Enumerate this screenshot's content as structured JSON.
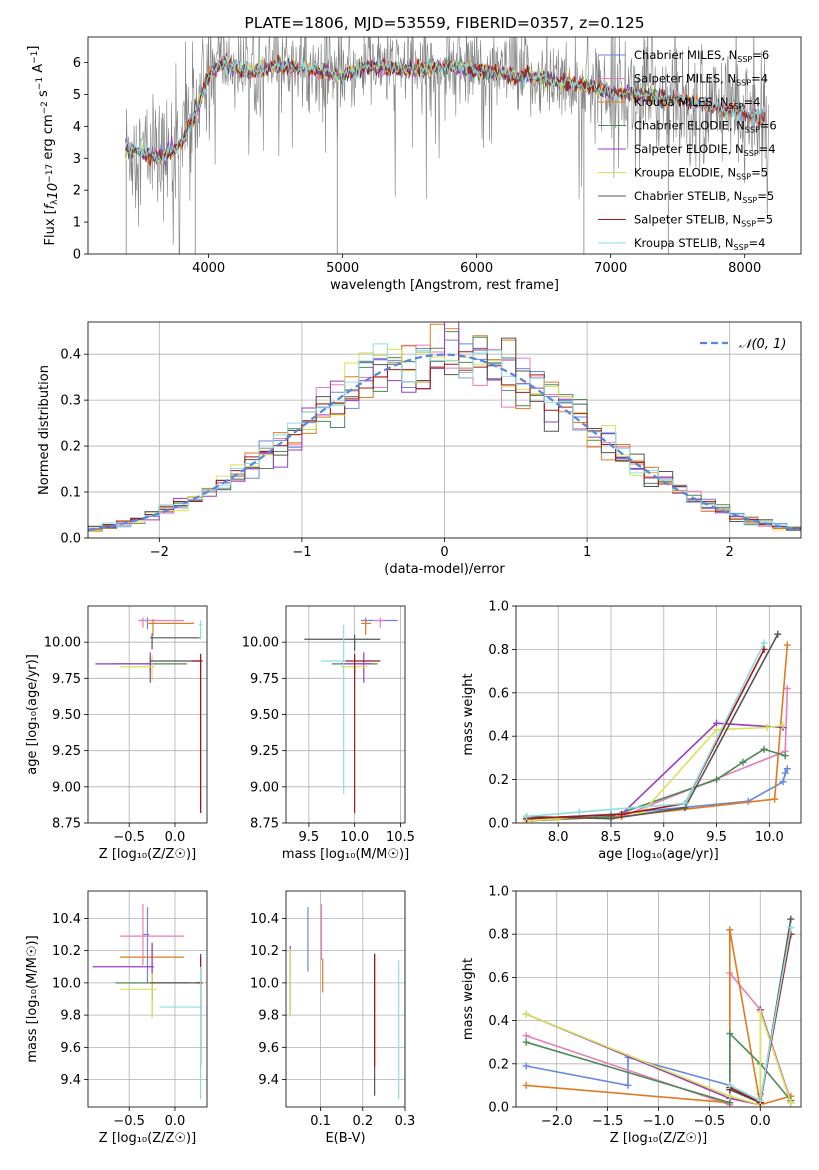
{
  "colors": {
    "miles_chabrier": "#6688dd",
    "miles_salpeter": "#e87dbb",
    "miles_kroupa": "#e07b20",
    "elodie_chabrier": "#4e8a57",
    "elodie_salpeter": "#9a3bc2",
    "elodie_kroupa": "#d9e35a",
    "stelib_chabrier": "#555555",
    "stelib_salpeter": "#a01818",
    "stelib_kroupa": "#8ddde0",
    "spectrum": "#808080",
    "normal": "#5588dd"
  },
  "chart_data": [
    {
      "id": "spectrum",
      "type": "line",
      "title": "PLATE=1806, MJD=53559, FIBERID=0357, z=0.125",
      "xlabel": "wavelength [Angstrom, rest frame]",
      "ylabel": "Flux [f_λ10^-17 erg cm^-2 s^-1 A^-1]",
      "xlim": [
        3100,
        8420
      ],
      "ylim": [
        0,
        6.8
      ],
      "xticks": [
        4000,
        5000,
        6000,
        7000,
        8000
      ],
      "yticks": [
        0,
        1,
        2,
        3,
        4,
        5,
        6
      ],
      "legend": "top-right",
      "legend_entries": [
        {
          "name": "Chabrier MILES, N",
          "sub": "SSP",
          "tail": "=6",
          "color": "miles_chabrier"
        },
        {
          "name": "Salpeter MILES, N",
          "sub": "SSP",
          "tail": "=4",
          "color": "miles_salpeter"
        },
        {
          "name": "Kroupa MILES, N",
          "sub": "SSP",
          "tail": "=4",
          "color": "miles_kroupa"
        },
        {
          "name": "Chabrier ELODIE, N",
          "sub": "SSP",
          "tail": "=6",
          "color": "elodie_chabrier"
        },
        {
          "name": "Salpeter ELODIE, N",
          "sub": "SSP",
          "tail": "=4",
          "color": "elodie_salpeter"
        },
        {
          "name": "Kroupa ELODIE, N",
          "sub": "SSP",
          "tail": "=5",
          "color": "elodie_kroupa"
        },
        {
          "name": "Chabrier STELIB, N",
          "sub": "SSP",
          "tail": "=5",
          "color": "stelib_chabrier"
        },
        {
          "name": "Salpeter STELIB, N",
          "sub": "SSP",
          "tail": "=5",
          "color": "stelib_salpeter"
        },
        {
          "name": "Kroupa STELIB, N",
          "sub": "SSP",
          "tail": "=4",
          "color": "stelib_kroupa"
        }
      ],
      "continuum": {
        "x": [
          3380,
          3500,
          3650,
          3800,
          3900,
          4000,
          4100,
          4300,
          4500,
          4700,
          5000,
          5200,
          5500,
          5800,
          6100,
          6400,
          6600,
          6800,
          7000,
          7200,
          7500,
          7800,
          8000,
          8150
        ],
        "y": [
          3.3,
          3.2,
          3.0,
          3.5,
          4.4,
          5.6,
          6.0,
          5.7,
          5.9,
          5.8,
          5.6,
          5.9,
          5.75,
          5.9,
          5.7,
          5.55,
          5.4,
          5.3,
          5.05,
          5.0,
          4.85,
          4.55,
          4.4,
          4.2
        ]
      }
    },
    {
      "id": "residuals",
      "type": "step",
      "xlabel": "(data-model)/error",
      "ylabel": "Normed distribution",
      "xlim": [
        -2.5,
        2.5
      ],
      "ylim": [
        0,
        0.47
      ],
      "xticks": [
        -2,
        -1,
        0,
        1,
        2
      ],
      "yticks": [
        0.0,
        0.1,
        0.2,
        0.3,
        0.4
      ],
      "legend": "top-right",
      "normal_label": "𝒩(0, 1)",
      "bin_width": 0.1
    },
    {
      "id": "age_Z",
      "type": "errorbar",
      "xlabel": "Z [log₁₀(Z/Z☉)]",
      "ylabel": "age  [log₁₀(age/yr)]",
      "xlim": [
        -0.95,
        0.35
      ],
      "ylim": [
        8.75,
        10.25
      ],
      "xticks": [
        -0.5,
        0.0
      ],
      "yticks": [
        8.75,
        9.0,
        9.25,
        9.5,
        9.75,
        10.0
      ],
      "points": [
        {
          "c": "miles_chabrier",
          "x": -0.3,
          "xerr": [
            0.09,
            0.02
          ],
          "y": 10.15,
          "yerr": [
            0.06,
            0.02
          ]
        },
        {
          "c": "miles_salpeter",
          "x": -0.35,
          "xerr": [
            0.05,
            0.45
          ],
          "y": 10.15,
          "yerr": [
            0.05,
            0.02
          ]
        },
        {
          "c": "miles_kroupa",
          "x": -0.24,
          "xerr": [
            0.05,
            0.45
          ],
          "y": 10.13,
          "yerr": [
            0.08,
            0.03
          ]
        },
        {
          "c": "elodie_chabrier",
          "x": -0.27,
          "xerr": [
            0.42,
            0.4
          ],
          "y": 9.85,
          "yerr": [
            0.06,
            0.05
          ]
        },
        {
          "c": "elodie_salpeter",
          "x": -0.27,
          "xerr": [
            0.6,
            0.03
          ],
          "y": 9.85,
          "yerr": [
            0.13,
            0.08
          ]
        },
        {
          "c": "elodie_kroupa",
          "x": -0.25,
          "xerr": [
            0.35,
            0.03
          ],
          "y": 9.83,
          "yerr": [
            0.1,
            0.08
          ]
        },
        {
          "c": "stelib_chabrier",
          "x": 0.28,
          "xerr": [
            0.55,
            0.02
          ],
          "y": 9.87,
          "yerr": [
            1.05,
            0.03
          ]
        },
        {
          "c": "stelib_salpeter",
          "x": 0.28,
          "xerr": [
            0.1,
            0.02
          ],
          "y": 9.87,
          "yerr": [
            1.05,
            0.05
          ]
        },
        {
          "c": "stelib_kroupa",
          "x": 0.28,
          "xerr": [
            0.02,
            0.02
          ],
          "y": 10.12,
          "yerr": [
            0.1,
            0.03
          ]
        },
        {
          "c": "stelib_chabrier",
          "x": -0.25,
          "xerr": [
            0.02,
            0.52
          ],
          "y": 10.03,
          "yerr": [
            0.08,
            0.03
          ]
        }
      ]
    },
    {
      "id": "age_mass",
      "type": "errorbar",
      "xlabel": "mass [log₁₀(M/M☉)]",
      "ylabel": "",
      "xlim": [
        9.25,
        10.55
      ],
      "ylim": [
        8.75,
        10.25
      ],
      "xticks": [
        9.5,
        10.0,
        10.5
      ],
      "yticks": [
        8.75,
        9.0,
        9.25,
        9.5,
        9.75,
        10.0
      ],
      "points": [
        {
          "c": "miles_chabrier",
          "x": 10.12,
          "xerr": [
            0.05,
            0.35
          ],
          "y": 10.15,
          "yerr": [
            0.05,
            0.02
          ]
        },
        {
          "c": "miles_salpeter",
          "x": 10.28,
          "xerr": [
            0.08,
            0.05
          ],
          "y": 10.15,
          "yerr": [
            0.05,
            0.02
          ]
        },
        {
          "c": "miles_kroupa",
          "x": 10.12,
          "xerr": [
            0.05,
            0.06
          ],
          "y": 10.13,
          "yerr": [
            0.08,
            0.03
          ]
        },
        {
          "c": "elodie_chabrier",
          "x": 10.0,
          "xerr": [
            0.25,
            0.25
          ],
          "y": 9.85,
          "yerr": [
            0.06,
            0.05
          ]
        },
        {
          "c": "elodie_salpeter",
          "x": 10.1,
          "xerr": [
            0.25,
            0.08
          ],
          "y": 9.85,
          "yerr": [
            0.13,
            0.08
          ]
        },
        {
          "c": "elodie_kroupa",
          "x": 10.0,
          "xerr": [
            0.15,
            0.15
          ],
          "y": 9.83,
          "yerr": [
            0.05,
            0.05
          ]
        },
        {
          "c": "stelib_chabrier",
          "x": 10.0,
          "xerr": [
            0.55,
            0.28
          ],
          "y": 10.02,
          "yerr": [
            0.08,
            0.03
          ]
        },
        {
          "c": "stelib_salpeter",
          "x": 10.0,
          "xerr": [
            0.1,
            0.28
          ],
          "y": 9.87,
          "yerr": [
            1.05,
            0.05
          ]
        },
        {
          "c": "stelib_kroupa",
          "x": 9.88,
          "xerr": [
            0.25,
            0.02
          ],
          "y": 9.87,
          "yerr": [
            0.92,
            0.25
          ]
        }
      ]
    },
    {
      "id": "mw_age",
      "type": "line",
      "xlabel": "age  [log₁₀(age/yr)]",
      "ylabel": "mass weight",
      "xlim": [
        7.6,
        10.3
      ],
      "ylim": [
        0,
        1.0
      ],
      "xticks": [
        8.0,
        8.5,
        9.0,
        9.5,
        10.0
      ],
      "yticks": [
        0.0,
        0.2,
        0.4,
        0.6,
        0.8,
        1.0
      ],
      "series": [
        {
          "c": "miles_chabrier",
          "x": [
            7.75,
            8.5,
            9.8,
            10.13,
            10.15,
            10.17
          ],
          "y": [
            0.02,
            0.04,
            0.1,
            0.19,
            0.23,
            0.25
          ]
        },
        {
          "c": "miles_salpeter",
          "x": [
            7.7,
            8.6,
            10.15,
            10.17
          ],
          "y": [
            0.01,
            0.03,
            0.33,
            0.62
          ]
        },
        {
          "c": "miles_kroupa",
          "x": [
            7.7,
            8.6,
            10.05,
            10.17
          ],
          "y": [
            0.01,
            0.03,
            0.11,
            0.82
          ]
        },
        {
          "c": "elodie_chabrier",
          "x": [
            7.7,
            8.5,
            9.5,
            9.75,
            9.95,
            10.15
          ],
          "y": [
            0.01,
            0.03,
            0.2,
            0.28,
            0.34,
            0.31
          ]
        },
        {
          "c": "elodie_salpeter",
          "x": [
            7.7,
            8.6,
            9.5,
            10.13
          ],
          "y": [
            0.02,
            0.04,
            0.46,
            0.44
          ]
        },
        {
          "c": "elodie_kroupa",
          "x": [
            7.7,
            8.0,
            8.8,
            9.5,
            9.98,
            10.13
          ],
          "y": [
            0.01,
            0.02,
            0.05,
            0.43,
            0.44,
            0.45
          ]
        },
        {
          "c": "stelib_chabrier",
          "x": [
            7.7,
            8.5,
            9.2,
            10.08
          ],
          "y": [
            0.03,
            0.02,
            0.07,
            0.87
          ]
        },
        {
          "c": "stelib_salpeter",
          "x": [
            7.7,
            8.6,
            9.2,
            9.95
          ],
          "y": [
            0.02,
            0.04,
            0.09,
            0.8
          ]
        },
        {
          "c": "stelib_kroupa",
          "x": [
            7.7,
            8.2,
            9.2,
            9.95
          ],
          "y": [
            0.03,
            0.05,
            0.09,
            0.83
          ]
        }
      ]
    },
    {
      "id": "mass_Z",
      "type": "errorbar",
      "xlabel": "Z [log₁₀(Z/Z☉)]",
      "ylabel": "mass [log₁₀(M/M☉)]",
      "xlim": [
        -0.95,
        0.35
      ],
      "ylim": [
        9.23,
        10.57
      ],
      "xticks": [
        -0.5,
        0.0
      ],
      "yticks": [
        9.4,
        9.6,
        9.8,
        10.0,
        10.2,
        10.4
      ],
      "points": [
        {
          "c": "miles_chabrier",
          "x": -0.3,
          "xerr": [
            0.05,
            0.02
          ],
          "y": 10.3,
          "yerr": [
            0.3,
            0.17
          ]
        },
        {
          "c": "miles_salpeter",
          "x": -0.35,
          "xerr": [
            0.25,
            0.45
          ],
          "y": 10.29,
          "yerr": [
            0.18,
            0.2
          ]
        },
        {
          "c": "miles_kroupa",
          "x": -0.25,
          "xerr": [
            0.35,
            0.35
          ],
          "y": 10.16,
          "yerr": [
            0.25,
            0.08
          ]
        },
        {
          "c": "elodie_chabrier",
          "x": -0.25,
          "xerr": [
            0.4,
            0.4
          ],
          "y": 10.0,
          "yerr": [
            0.2,
            0.07
          ]
        },
        {
          "c": "elodie_salpeter",
          "x": -0.25,
          "xerr": [
            0.65,
            0.02
          ],
          "y": 10.1,
          "yerr": [
            0.2,
            0.15
          ]
        },
        {
          "c": "elodie_kroupa",
          "x": -0.25,
          "xerr": [
            0.35,
            0.05
          ],
          "y": 9.96,
          "yerr": [
            0.18,
            0.1
          ]
        },
        {
          "c": "stelib_chabrier",
          "x": 0.28,
          "xerr": [
            0.55,
            0.02
          ],
          "y": 10.0,
          "yerr": [
            0.5,
            0.18
          ]
        },
        {
          "c": "stelib_salpeter",
          "x": 0.28,
          "xerr": [
            0.05,
            0.02
          ],
          "y": 10.0,
          "yerr": [
            0.52,
            0.16
          ]
        },
        {
          "c": "stelib_kroupa",
          "x": 0.28,
          "xerr": [
            0.45,
            0.02
          ],
          "y": 9.85,
          "yerr": [
            0.57,
            0.25
          ]
        }
      ]
    },
    {
      "id": "mass_ebv",
      "type": "errorbar",
      "xlabel": "E(B-V)",
      "ylabel": "",
      "xlim": [
        0.018,
        0.3
      ],
      "ylim": [
        9.23,
        10.57
      ],
      "xticks": [
        0.1,
        0.2,
        0.3
      ],
      "yticks": [
        9.4,
        9.6,
        9.8,
        10.0,
        10.2,
        10.4
      ],
      "points": [
        {
          "c": "miles_chabrier",
          "x": 0.07,
          "yv": [
            10.07,
            10.47
          ]
        },
        {
          "c": "miles_salpeter",
          "x": 0.102,
          "yv": [
            10.14,
            10.49
          ]
        },
        {
          "c": "miles_kroupa",
          "x": 0.105,
          "yv": [
            9.94,
            10.15
          ]
        },
        {
          "c": "elodie_salpeter",
          "x": 0.028,
          "yv": [
            9.8,
            10.23
          ]
        },
        {
          "c": "elodie_kroupa",
          "x": 0.028,
          "yv": [
            9.79,
            10.21
          ]
        },
        {
          "c": "stelib_chabrier",
          "x": 0.228,
          "yv": [
            9.3,
            10.18
          ]
        },
        {
          "c": "stelib_salpeter",
          "x": 0.228,
          "yv": [
            9.48,
            10.18
          ]
        },
        {
          "c": "stelib_kroupa",
          "x": 0.285,
          "yv": [
            9.28,
            10.14
          ]
        }
      ]
    },
    {
      "id": "mw_Z",
      "type": "line",
      "xlabel": "Z [log₁₀(Z/Z☉)]",
      "ylabel": "mass weight",
      "xlim": [
        -2.4,
        0.4
      ],
      "ylim": [
        0,
        1.0
      ],
      "xticks": [
        -2.0,
        -1.5,
        -1.0,
        -0.5,
        0.0
      ],
      "yticks": [
        0.0,
        0.2,
        0.4,
        0.6,
        0.8,
        1.0
      ],
      "series": [
        {
          "c": "miles_chabrier",
          "x": [
            -2.3,
            -1.3,
            -1.3,
            -0.3,
            0.0,
            0.0
          ],
          "y": [
            0.19,
            0.1,
            0.23,
            0.1,
            0.02,
            0.06
          ]
        },
        {
          "c": "miles_salpeter",
          "x": [
            -2.3,
            -0.3,
            -0.3,
            0.0,
            0.3
          ],
          "y": [
            0.33,
            0.01,
            0.62,
            0.45,
            0.03
          ]
        },
        {
          "c": "miles_kroupa",
          "x": [
            -2.3,
            -0.3,
            -0.3,
            0.0,
            0.3
          ],
          "y": [
            0.1,
            0.02,
            0.82,
            0.01,
            0.05
          ]
        },
        {
          "c": "elodie_chabrier",
          "x": [
            -2.3,
            -0.3,
            -0.3,
            0.0,
            0.3
          ],
          "y": [
            0.3,
            0.02,
            0.34,
            0.2,
            0.03
          ]
        },
        {
          "c": "elodie_salpeter",
          "x": [
            -2.3,
            -0.3,
            0.0,
            0.0,
            0.3
          ],
          "y": [
            0.43,
            0.04,
            0.01,
            0.45,
            0.02
          ]
        },
        {
          "c": "elodie_kroupa",
          "x": [
            -2.3,
            -0.3,
            0.0,
            0.0,
            0.3
          ],
          "y": [
            0.43,
            0.05,
            0.01,
            0.44,
            0.02
          ]
        },
        {
          "c": "stelib_chabrier",
          "x": [
            -0.3,
            0.0,
            0.3
          ],
          "y": [
            0.08,
            0.02,
            0.87
          ]
        },
        {
          "c": "stelib_salpeter",
          "x": [
            -0.3,
            0.0,
            0.3
          ],
          "y": [
            0.09,
            0.02,
            0.8
          ]
        },
        {
          "c": "stelib_kroupa",
          "x": [
            -0.3,
            0.0,
            0.3
          ],
          "y": [
            0.1,
            0.03,
            0.83
          ]
        }
      ]
    }
  ]
}
